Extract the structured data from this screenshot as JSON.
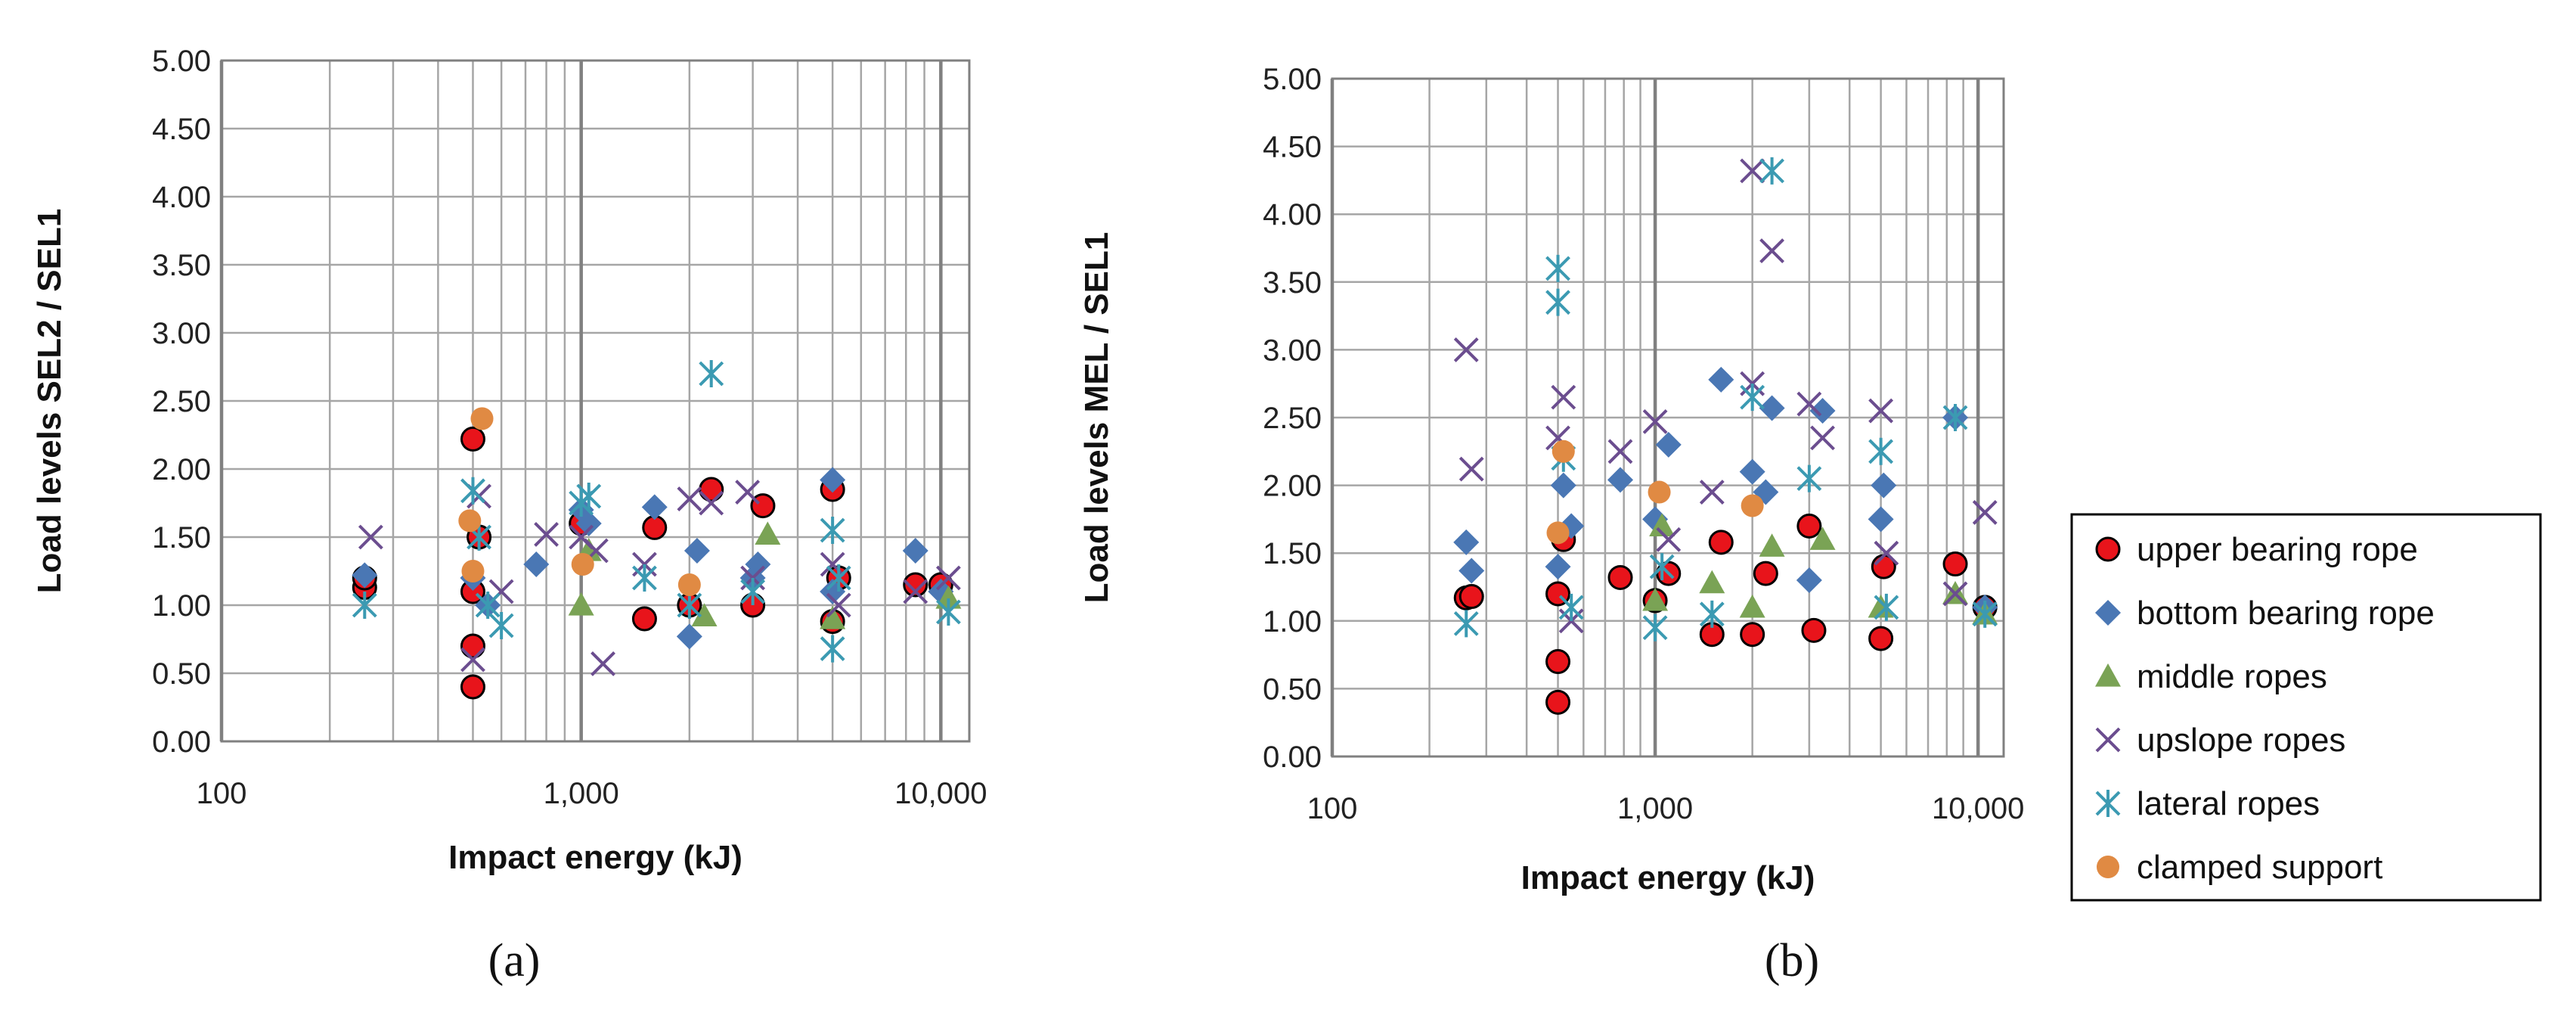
{
  "figure": {
    "panel_labels": [
      "(a)",
      "(b)"
    ]
  },
  "legend": {
    "items": [
      {
        "label": "upper bearing rope",
        "marker": "circle",
        "fill": "#e8141b",
        "stroke": "#000000"
      },
      {
        "label": "bottom bearing rope",
        "marker": "diamond",
        "fill": "#4a77b4",
        "stroke": "#4a77b4"
      },
      {
        "label": "middle ropes",
        "marker": "triangle",
        "fill": "#7aa355",
        "stroke": "#7aa355"
      },
      {
        "label": "upslope ropes",
        "marker": "x",
        "fill": "none",
        "stroke": "#6b4d8f"
      },
      {
        "label": "lateral ropes",
        "marker": "star",
        "fill": "none",
        "stroke": "#3b9ab2"
      },
      {
        "label": "clamped support",
        "marker": "circle",
        "fill": "#e08a43",
        "stroke": "#e08a43"
      }
    ]
  },
  "chart_data": [
    {
      "type": "scatter",
      "panel": "(a)",
      "xlabel": "Impact energy (kJ)",
      "ylabel": "Load levels SEL2 / SEL1",
      "xscale": "log",
      "xlim": [
        100,
        12000
      ],
      "ylim": [
        0,
        5
      ],
      "xticks": [
        100,
        1000,
        10000
      ],
      "xtick_labels": [
        "100",
        "1,000",
        "10,000"
      ],
      "yticks": [
        0,
        0.5,
        1,
        1.5,
        2,
        2.5,
        3,
        3.5,
        4,
        4.5,
        5
      ],
      "ytick_labels": [
        "0.00",
        "0.50",
        "1.00",
        "1.50",
        "2.00",
        "2.50",
        "3.00",
        "3.50",
        "4.00",
        "4.50",
        "5.00"
      ],
      "grid": true,
      "legend": "none",
      "series": [
        {
          "name": "upper bearing rope",
          "points": [
            [
              250,
              1.13
            ],
            [
              250,
              1.2
            ],
            [
              500,
              2.22
            ],
            [
              500,
              0.7
            ],
            [
              500,
              0.4
            ],
            [
              500,
              1.1
            ],
            [
              520,
              1.5
            ],
            [
              1000,
              1.6
            ],
            [
              1500,
              0.9
            ],
            [
              1600,
              1.57
            ],
            [
              2000,
              1.0
            ],
            [
              2300,
              1.85
            ],
            [
              3000,
              1.0
            ],
            [
              3200,
              1.73
            ],
            [
              5000,
              0.88
            ],
            [
              5000,
              1.85
            ],
            [
              5200,
              1.2
            ],
            [
              8500,
              1.15
            ],
            [
              10000,
              1.15
            ]
          ]
        },
        {
          "name": "bottom bearing rope",
          "points": [
            [
              250,
              1.22
            ],
            [
              500,
              1.2
            ],
            [
              550,
              1.0
            ],
            [
              750,
              1.3
            ],
            [
              1000,
              1.7
            ],
            [
              1050,
              1.6
            ],
            [
              1600,
              1.72
            ],
            [
              2000,
              0.77
            ],
            [
              2100,
              1.4
            ],
            [
              3000,
              1.2
            ],
            [
              3100,
              1.3
            ],
            [
              5000,
              1.92
            ],
            [
              5000,
              1.1
            ],
            [
              8500,
              1.4
            ],
            [
              10000,
              1.1
            ]
          ]
        },
        {
          "name": "middle ropes",
          "points": [
            [
              1000,
              1.0
            ],
            [
              1050,
              1.4
            ],
            [
              2200,
              0.92
            ],
            [
              3300,
              1.52
            ],
            [
              5000,
              0.9
            ],
            [
              10500,
              1.05
            ]
          ]
        },
        {
          "name": "upslope ropes",
          "points": [
            [
              260,
              1.5
            ],
            [
              500,
              0.6
            ],
            [
              520,
              1.8
            ],
            [
              600,
              1.1
            ],
            [
              800,
              1.52
            ],
            [
              1000,
              1.5
            ],
            [
              1100,
              1.4
            ],
            [
              1150,
              0.57
            ],
            [
              1500,
              1.3
            ],
            [
              2000,
              1.78
            ],
            [
              2300,
              1.75
            ],
            [
              2900,
              1.83
            ],
            [
              3000,
              1.2
            ],
            [
              5000,
              1.3
            ],
            [
              5200,
              1.0
            ],
            [
              8500,
              1.1
            ],
            [
              10500,
              1.2
            ]
          ]
        },
        {
          "name": "lateral ropes",
          "points": [
            [
              250,
              1.0
            ],
            [
              500,
              1.84
            ],
            [
              520,
              1.5
            ],
            [
              550,
              1.0
            ],
            [
              600,
              0.85
            ],
            [
              1000,
              1.75
            ],
            [
              1050,
              1.8
            ],
            [
              1500,
              1.2
            ],
            [
              2000,
              1.0
            ],
            [
              2300,
              2.7
            ],
            [
              3000,
              1.1
            ],
            [
              5000,
              0.68
            ],
            [
              5000,
              1.55
            ],
            [
              5200,
              1.2
            ],
            [
              10500,
              0.95
            ]
          ]
        },
        {
          "name": "clamped support",
          "points": [
            [
              490,
              1.62
            ],
            [
              500,
              1.25
            ],
            [
              530,
              2.37
            ],
            [
              1010,
              1.3
            ],
            [
              2000,
              1.15
            ]
          ]
        }
      ]
    },
    {
      "type": "scatter",
      "panel": "(b)",
      "xlabel": "Impact energy (kJ)",
      "ylabel": "Load levels MEL / SEL1",
      "xscale": "log",
      "xlim": [
        100,
        12000
      ],
      "ylim": [
        0,
        5
      ],
      "xticks": [
        100,
        1000,
        10000
      ],
      "xtick_labels": [
        "100",
        "1,000",
        "10,000"
      ],
      "yticks": [
        0,
        0.5,
        1,
        1.5,
        2,
        2.5,
        3,
        3.5,
        4,
        4.5,
        5
      ],
      "ytick_labels": [
        "0.00",
        "0.50",
        "1.00",
        "1.50",
        "2.00",
        "2.50",
        "3.00",
        "3.50",
        "4.00",
        "4.50",
        "5.00"
      ],
      "grid": true,
      "legend": "right",
      "series": [
        {
          "name": "upper bearing rope",
          "points": [
            [
              260,
              1.17
            ],
            [
              270,
              1.18
            ],
            [
              500,
              0.7
            ],
            [
              500,
              0.4
            ],
            [
              500,
              1.2
            ],
            [
              520,
              1.6
            ],
            [
              780,
              1.32
            ],
            [
              1000,
              1.15
            ],
            [
              1100,
              1.35
            ],
            [
              1500,
              0.9
            ],
            [
              1600,
              1.58
            ],
            [
              2000,
              0.9
            ],
            [
              2200,
              1.35
            ],
            [
              3000,
              1.7
            ],
            [
              3100,
              0.93
            ],
            [
              5000,
              0.87
            ],
            [
              5100,
              1.4
            ],
            [
              8500,
              1.42
            ],
            [
              10500,
              1.1
            ]
          ]
        },
        {
          "name": "bottom bearing rope",
          "points": [
            [
              260,
              1.58
            ],
            [
              270,
              1.37
            ],
            [
              500,
              1.4
            ],
            [
              520,
              2.0
            ],
            [
              550,
              1.7
            ],
            [
              780,
              2.04
            ],
            [
              1000,
              1.75
            ],
            [
              1100,
              2.3
            ],
            [
              1600,
              2.78
            ],
            [
              2000,
              2.1
            ],
            [
              2200,
              1.95
            ],
            [
              2300,
              2.57
            ],
            [
              3000,
              1.3
            ],
            [
              3300,
              2.55
            ],
            [
              5000,
              1.75
            ],
            [
              5100,
              2.0
            ],
            [
              8500,
              2.5
            ],
            [
              10500,
              1.1
            ]
          ]
        },
        {
          "name": "middle ropes",
          "points": [
            [
              1000,
              1.15
            ],
            [
              1050,
              1.7
            ],
            [
              1500,
              1.28
            ],
            [
              2000,
              1.1
            ],
            [
              2300,
              1.55
            ],
            [
              3300,
              1.6
            ],
            [
              5000,
              1.1
            ],
            [
              8500,
              1.2
            ],
            [
              10500,
              1.05
            ]
          ]
        },
        {
          "name": "upslope ropes",
          "points": [
            [
              260,
              3.0
            ],
            [
              270,
              2.12
            ],
            [
              500,
              2.35
            ],
            [
              520,
              2.65
            ],
            [
              550,
              1.0
            ],
            [
              780,
              2.25
            ],
            [
              1000,
              2.47
            ],
            [
              1100,
              1.6
            ],
            [
              1500,
              1.95
            ],
            [
              2000,
              4.32
            ],
            [
              2000,
              2.75
            ],
            [
              2300,
              3.73
            ],
            [
              3000,
              2.6
            ],
            [
              3300,
              2.35
            ],
            [
              5000,
              2.55
            ],
            [
              5200,
              1.5
            ],
            [
              8500,
              1.2
            ],
            [
              10500,
              1.8
            ]
          ]
        },
        {
          "name": "lateral ropes",
          "points": [
            [
              260,
              0.98
            ],
            [
              500,
              3.6
            ],
            [
              500,
              3.35
            ],
            [
              520,
              2.2
            ],
            [
              550,
              1.1
            ],
            [
              1000,
              0.95
            ],
            [
              1050,
              1.4
            ],
            [
              1500,
              1.05
            ],
            [
              2000,
              2.65
            ],
            [
              2300,
              4.32
            ],
            [
              3000,
              2.05
            ],
            [
              5000,
              2.25
            ],
            [
              5200,
              1.1
            ],
            [
              8500,
              2.5
            ],
            [
              10500,
              1.05
            ]
          ]
        },
        {
          "name": "clamped support",
          "points": [
            [
              500,
              1.65
            ],
            [
              520,
              2.25
            ],
            [
              1030,
              1.95
            ],
            [
              2000,
              1.85
            ]
          ]
        }
      ]
    }
  ]
}
